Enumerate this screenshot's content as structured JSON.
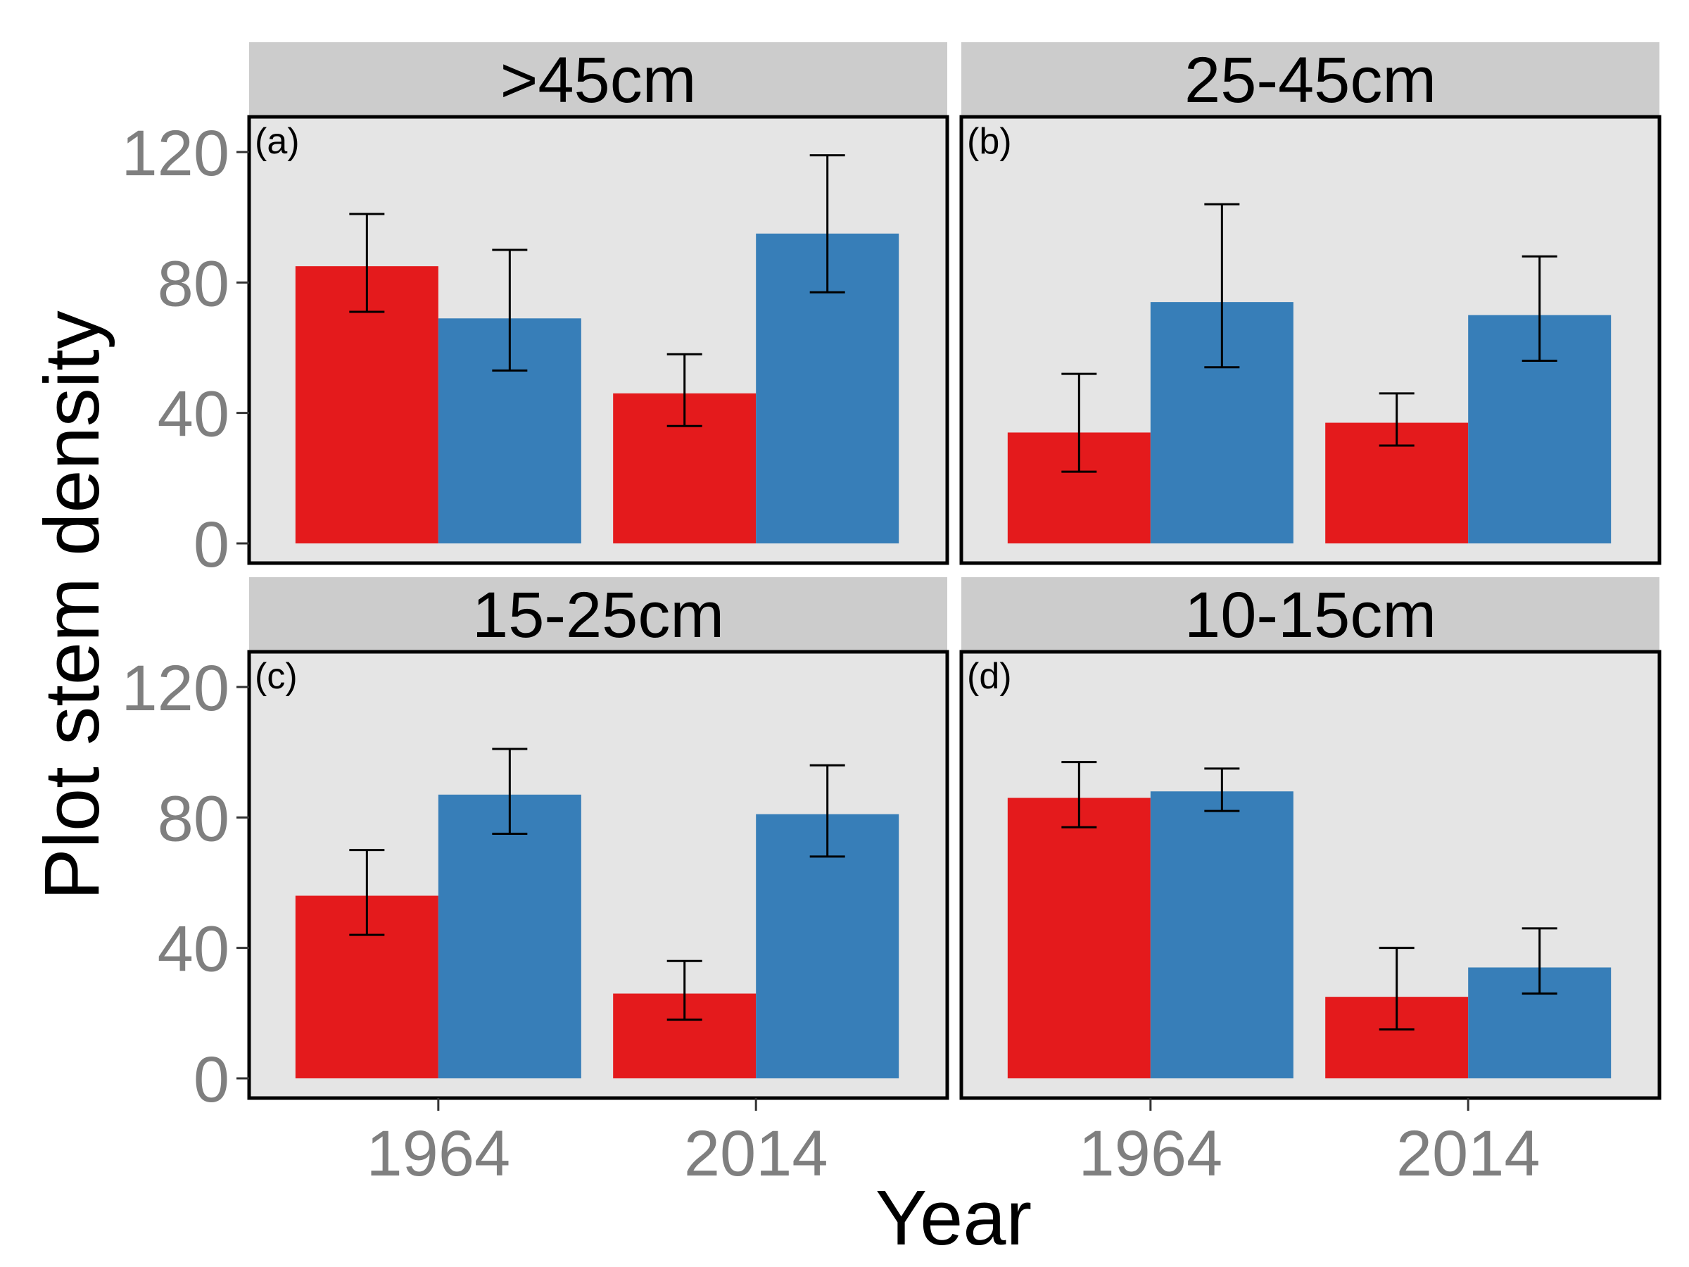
{
  "chart_data": {
    "type": "bar",
    "layout": "facet-2x2",
    "xlabel": "Year",
    "ylabel": "Plot stem density",
    "ylim": [
      0,
      130
    ],
    "yticks": [
      0,
      40,
      80,
      120
    ],
    "categories": [
      "1964",
      "2014"
    ],
    "bars_per_category": 2,
    "series_colors": [
      "#e41a1c",
      "#377eb8"
    ],
    "grid": false,
    "legend": "none",
    "background": "#e5e5e5",
    "strip_background": "#cccccc",
    "panels": [
      {
        "strip": ">45cm",
        "tag": "(a)",
        "series": [
          {
            "values": [
              85,
              46
            ],
            "error_low": [
              71,
              36
            ],
            "error_high": [
              101,
              58
            ]
          },
          {
            "values": [
              69,
              95
            ],
            "error_low": [
              53,
              77
            ],
            "error_high": [
              90,
              119
            ]
          }
        ]
      },
      {
        "strip": "25-45cm",
        "tag": "(b)",
        "series": [
          {
            "values": [
              34,
              37
            ],
            "error_low": [
              22,
              30
            ],
            "error_high": [
              52,
              46
            ]
          },
          {
            "values": [
              74,
              70
            ],
            "error_low": [
              54,
              56
            ],
            "error_high": [
              104,
              88
            ]
          }
        ]
      },
      {
        "strip": "15-25cm",
        "tag": "(c)",
        "series": [
          {
            "values": [
              56,
              26
            ],
            "error_low": [
              44,
              18
            ],
            "error_high": [
              70,
              36
            ]
          },
          {
            "values": [
              87,
              81
            ],
            "error_low": [
              75,
              68
            ],
            "error_high": [
              101,
              96
            ]
          }
        ]
      },
      {
        "strip": "10-15cm",
        "tag": "(d)",
        "series": [
          {
            "values": [
              86,
              25
            ],
            "error_low": [
              77,
              15
            ],
            "error_high": [
              97,
              40
            ]
          },
          {
            "values": [
              88,
              34
            ],
            "error_low": [
              82,
              26
            ],
            "error_high": [
              95,
              46
            ]
          }
        ]
      }
    ]
  }
}
